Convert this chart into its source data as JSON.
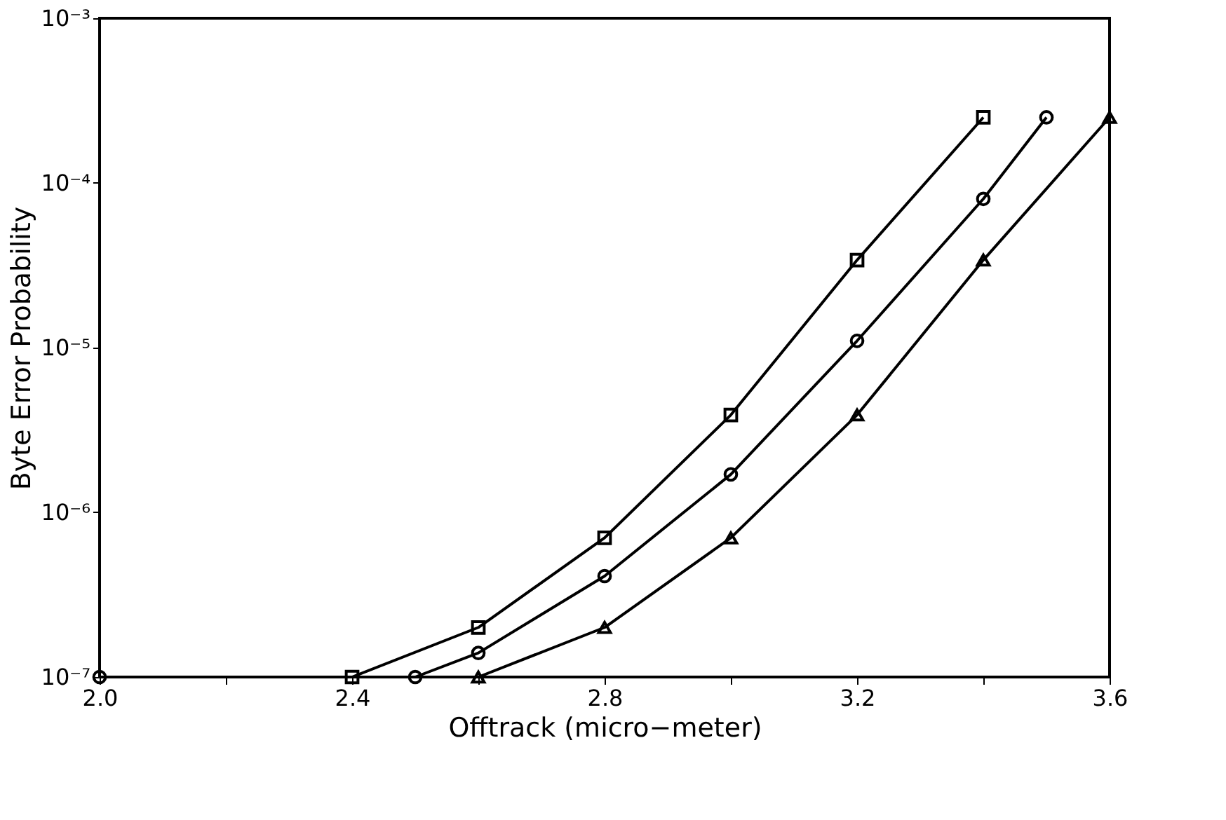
{
  "chart_data": {
    "type": "line",
    "xlabel": "Offtrack (micro−meter)",
    "ylabel": "Byte Error Probability",
    "log": "y",
    "grid": false,
    "xlim": [
      2.0,
      3.6
    ],
    "xticks": [
      {
        "value": 2.0,
        "label": "2.0"
      },
      {
        "value": 2.2,
        "label": null
      },
      {
        "value": 2.4,
        "label": "2.4"
      },
      {
        "value": 2.6,
        "label": null
      },
      {
        "value": 2.8,
        "label": "2.8"
      },
      {
        "value": 3.0,
        "label": null
      },
      {
        "value": 3.2,
        "label": "3.2"
      },
      {
        "value": 3.4,
        "label": null
      },
      {
        "value": 3.6,
        "label": "3.6"
      }
    ],
    "ylim": [
      1e-07,
      0.001
    ],
    "yticks": [
      {
        "value": 1e-07,
        "label": "10⁻⁷"
      },
      {
        "value": 1e-06,
        "label": "10⁻⁶"
      },
      {
        "value": 1e-05,
        "label": "10⁻⁵"
      },
      {
        "value": 0.0001,
        "label": "10⁻⁴"
      },
      {
        "value": 0.001,
        "label": "10⁻³"
      }
    ],
    "line_style": "solid",
    "series": [
      {
        "color": "#000000",
        "marker": "square",
        "x": [
          2.4,
          2.6,
          2.8,
          3.0,
          3.2,
          3.4
        ],
        "values": [
          1e-07,
          2e-07,
          7e-07,
          3.9e-06,
          3.4e-05,
          0.00025
        ]
      },
      {
        "color": "#000000",
        "marker": "circle",
        "x": [
          2.0,
          2.5,
          2.6,
          2.8,
          3.0,
          3.2,
          3.4,
          3.5
        ],
        "values": [
          1e-07,
          1e-07,
          1.4e-07,
          4.1e-07,
          1.7e-06,
          1.1e-05,
          8e-05,
          0.00025
        ]
      },
      {
        "color": "#000000",
        "marker": "triangle",
        "x": [
          2.6,
          2.8,
          3.0,
          3.2,
          3.4,
          3.6
        ],
        "values": [
          1e-07,
          2e-07,
          7e-07,
          3.9e-06,
          3.4e-05,
          0.00025
        ]
      }
    ]
  }
}
